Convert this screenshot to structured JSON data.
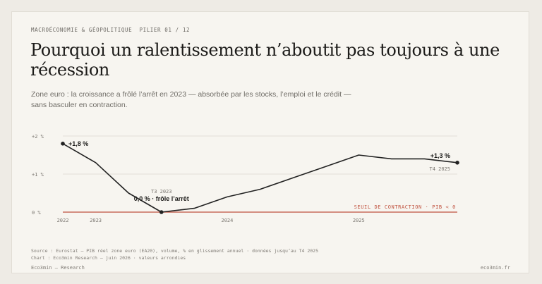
{
  "header": {
    "kicker": "MACROÉCONOMIE & GÉOPOLITIQUE  PILIER 01 / 12",
    "title": "Pourquoi un ralentissement n’aboutit pas toujours à une récession",
    "subtitle_line1": "Zone euro : la croissance a frôlé l’arrêt en 2023 — absorbée par les stocks, l’emploi et le crédit —",
    "subtitle_line2": "sans basculer en contraction."
  },
  "colors": {
    "line": "#222222",
    "threshold": "#c0523f",
    "grid": "#e3dfd7",
    "text": "#1c1b19",
    "muted": "#7a7670"
  },
  "chart_data": {
    "type": "line",
    "y_ticks": [
      "+2 %",
      "+1 %",
      "0 %"
    ],
    "y_tick_values": [
      2,
      1,
      0
    ],
    "ylim": [
      0,
      2
    ],
    "x_ticks": [
      "2022",
      "2023",
      "2024",
      "2025"
    ],
    "x_tick_values": [
      0,
      1,
      5,
      9
    ],
    "x_index_range": [
      0,
      12
    ],
    "series": [
      {
        "x": [
          0,
          1,
          2,
          3,
          4,
          5,
          6,
          7,
          8,
          9,
          10,
          11,
          12
        ],
        "values": [
          1.8,
          1.3,
          0.5,
          0.0,
          0.1,
          0.4,
          0.6,
          0.9,
          1.2,
          1.5,
          1.4,
          1.4,
          1.3
        ]
      }
    ],
    "threshold": {
      "value": 0,
      "label": "SEUIL DE CONTRACTION · PIB < 0"
    },
    "annotations": {
      "start": {
        "text": "+1,8 %",
        "x": 0,
        "y": 1.8
      },
      "min_kicker": "T3 2023",
      "min_label": "0,0 % · frôle l’arrêt",
      "min": {
        "x": 3,
        "y": 0.0
      },
      "end": {
        "text": "+1,3 %",
        "sub": "T4 2025",
        "x": 12,
        "y": 1.3
      }
    },
    "grid": true
  },
  "source": {
    "line1": "Source : Eurostat — PIB réel zone euro (EA20), volume, % en glissement annuel · données jusqu’au T4 2025",
    "line2": "Chart : Eco3min Research — juin 2026 · valeurs arrondies"
  },
  "footer": {
    "left": "Eco3min — Research",
    "right": "eco3min.fr"
  }
}
